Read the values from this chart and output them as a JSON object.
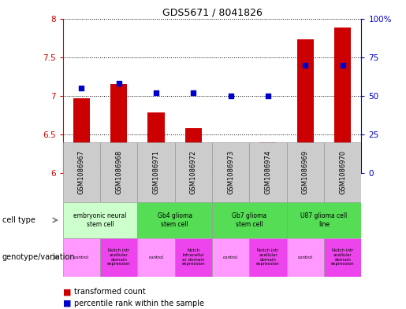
{
  "title": "GDS5671 / 8041826",
  "samples": [
    "GSM1086967",
    "GSM1086968",
    "GSM1086971",
    "GSM1086972",
    "GSM1086973",
    "GSM1086974",
    "GSM1086969",
    "GSM1086970"
  ],
  "bar_values": [
    6.97,
    7.15,
    6.78,
    6.58,
    6.38,
    6.4,
    7.73,
    7.88
  ],
  "scatter_values": [
    55,
    58,
    52,
    52,
    50,
    50,
    70,
    70
  ],
  "ylim_left": [
    6.0,
    8.0
  ],
  "ylim_right": [
    0,
    100
  ],
  "yticks_left": [
    6.0,
    6.5,
    7.0,
    7.5,
    8.0
  ],
  "yticks_right": [
    0,
    25,
    50,
    75,
    100
  ],
  "ytick_labels_right": [
    "0",
    "25",
    "50",
    "75",
    "100%"
  ],
  "bar_color": "#cc0000",
  "scatter_color": "#0000cc",
  "cell_type_groups": [
    {
      "label": "embryonic neural\nstem cell",
      "start": 0,
      "end": 2,
      "color": "#ccffcc"
    },
    {
      "label": "Gb4 glioma\nstem cell",
      "start": 2,
      "end": 4,
      "color": "#55dd55"
    },
    {
      "label": "Gb7 glioma\nstem cell",
      "start": 4,
      "end": 6,
      "color": "#55dd55"
    },
    {
      "label": "U87 glioma cell\nline",
      "start": 6,
      "end": 8,
      "color": "#55dd55"
    }
  ],
  "genotype_groups": [
    {
      "label": "control",
      "start": 0,
      "end": 1,
      "color": "#ff99ff"
    },
    {
      "label": "Notch intr\nacellular\ndomain\nexpression",
      "start": 1,
      "end": 2,
      "color": "#ee44ee"
    },
    {
      "label": "control",
      "start": 2,
      "end": 3,
      "color": "#ff99ff"
    },
    {
      "label": "Notch\nintracellul\nar domain\nexpression",
      "start": 3,
      "end": 4,
      "color": "#ee44ee"
    },
    {
      "label": "control",
      "start": 4,
      "end": 5,
      "color": "#ff99ff"
    },
    {
      "label": "Notch intr\nacellular\ndomain\nexpression",
      "start": 5,
      "end": 6,
      "color": "#ee44ee"
    },
    {
      "label": "control",
      "start": 6,
      "end": 7,
      "color": "#ff99ff"
    },
    {
      "label": "Notch intr\nacellular\ndomain\nexpression",
      "start": 7,
      "end": 8,
      "color": "#ee44ee"
    }
  ],
  "legend_red_label": "transformed count",
  "legend_blue_label": "percentile rank within the sample",
  "gsm_bg_color": "#cccccc",
  "cell_type_label": "cell type",
  "genotype_label": "genotype/variation",
  "fig_width": 5.15,
  "fig_height": 3.93,
  "dpi": 100
}
